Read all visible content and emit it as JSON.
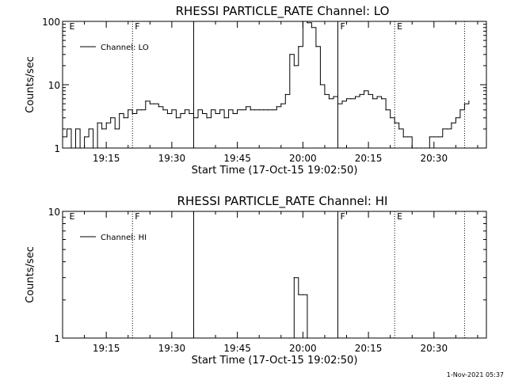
{
  "footer": "1-Nov-2021 05:37",
  "chart_data": [
    {
      "type": "line",
      "title": "RHESSI PARTICLE_RATE Channel: LO",
      "xlabel": "Start Time (17-Oct-15 19:02:50)",
      "ylabel": "Counts/sec",
      "y_scale": "log",
      "ylim": [
        1,
        100
      ],
      "y_ticks": [
        "1",
        "10",
        "100"
      ],
      "xlim": [
        "19:05",
        "20:42"
      ],
      "x_ticks": [
        "19:15",
        "19:30",
        "19:45",
        "20:00",
        "20:15",
        "20:30"
      ],
      "grid": false,
      "legend": "top-left",
      "series": [
        {
          "name": "Channel: LO",
          "x": [
            "19:05",
            "19:06",
            "19:07",
            "19:08",
            "19:09",
            "19:10",
            "19:11",
            "19:12",
            "19:13",
            "19:14",
            "19:15",
            "19:16",
            "19:17",
            "19:18",
            "19:19",
            "19:20",
            "19:21",
            "19:22",
            "19:23",
            "19:24",
            "19:25",
            "19:26",
            "19:27",
            "19:28",
            "19:29",
            "19:30",
            "19:31",
            "19:32",
            "19:33",
            "19:34",
            "19:35",
            "19:36",
            "19:37",
            "19:38",
            "19:39",
            "19:40",
            "19:41",
            "19:42",
            "19:43",
            "19:44",
            "19:45",
            "19:46",
            "19:47",
            "19:48",
            "19:49",
            "19:50",
            "19:51",
            "19:52",
            "19:53",
            "19:54",
            "19:55",
            "19:56",
            "19:57",
            "19:58",
            "19:59",
            "20:00",
            "20:01",
            "20:02",
            "20:03",
            "20:04",
            "20:05",
            "20:06",
            "20:07",
            "20:08",
            "20:09",
            "20:10",
            "20:11",
            "20:12",
            "20:13",
            "20:14",
            "20:15",
            "20:16",
            "20:17",
            "20:18",
            "20:19",
            "20:20",
            "20:21",
            "20:22",
            "20:23",
            "20:24",
            "20:25",
            "20:26",
            "20:27",
            "20:28",
            "20:29",
            "20:30",
            "20:31",
            "20:32",
            "20:33",
            "20:34",
            "20:35",
            "20:36",
            "20:37",
            "20:38"
          ],
          "values": [
            1.5,
            2,
            1,
            2,
            1,
            1.5,
            2,
            1,
            2.5,
            2,
            2.5,
            3,
            2,
            3.5,
            3,
            4,
            3.5,
            4,
            4,
            5.5,
            5,
            5,
            4.5,
            4,
            3.5,
            4,
            3,
            3.5,
            4,
            3.5,
            3,
            4,
            3.5,
            3,
            4,
            3.5,
            4,
            3,
            4,
            3.5,
            4,
            4,
            4.5,
            4,
            4,
            4,
            4,
            4,
            4,
            4.5,
            5,
            7,
            30,
            20,
            40,
            100,
            95,
            80,
            40,
            10,
            7,
            6,
            6.5,
            5,
            5.5,
            6,
            6,
            6.5,
            7,
            8,
            7,
            6,
            6.5,
            6,
            4,
            3,
            2.5,
            2,
            1.5,
            1.5,
            1,
            1,
            1,
            1,
            1.5,
            1.5,
            1.5,
            2,
            2,
            2.5,
            3,
            4,
            5,
            5.5
          ]
        }
      ],
      "markers": [
        {
          "time": "19:06",
          "label": "E",
          "style": "none"
        },
        {
          "time": "19:21",
          "label": "F",
          "style": "dotted"
        },
        {
          "time": "19:35",
          "label": "",
          "style": "solid"
        },
        {
          "time": "20:08",
          "label": "F",
          "style": "solid"
        },
        {
          "time": "20:21",
          "label": "E",
          "style": "dotted"
        },
        {
          "time": "20:37",
          "label": "",
          "style": "dotted"
        }
      ]
    },
    {
      "type": "line",
      "title": "RHESSI PARTICLE_RATE Channel: HI",
      "xlabel": "Start Time (17-Oct-15 19:02:50)",
      "ylabel": "Counts/sec",
      "y_scale": "log",
      "ylim": [
        1,
        10
      ],
      "y_ticks": [
        "1",
        "10"
      ],
      "xlim": [
        "19:05",
        "20:42"
      ],
      "x_ticks": [
        "19:15",
        "19:30",
        "19:45",
        "20:00",
        "20:15",
        "20:30"
      ],
      "grid": false,
      "legend": "top-left",
      "series": [
        {
          "name": "Channel: HI",
          "x": [
            "19:57",
            "19:58",
            "19:59",
            "20:00",
            "20:01"
          ],
          "values": [
            1,
            3,
            2.2,
            2.2,
            1
          ]
        }
      ],
      "markers": [
        {
          "time": "19:06",
          "label": "E",
          "style": "none"
        },
        {
          "time": "19:21",
          "label": "F",
          "style": "dotted"
        },
        {
          "time": "19:35",
          "label": "",
          "style": "solid"
        },
        {
          "time": "20:08",
          "label": "F",
          "style": "solid"
        },
        {
          "time": "20:21",
          "label": "E",
          "style": "dotted"
        },
        {
          "time": "20:37",
          "label": "",
          "style": "dotted"
        }
      ]
    }
  ]
}
